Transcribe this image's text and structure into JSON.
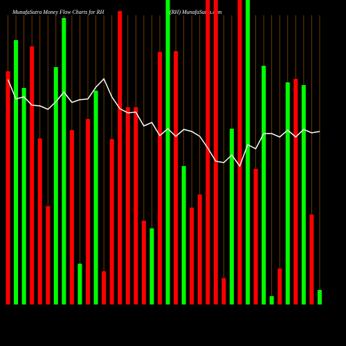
{
  "chart_data": {
    "type": "bar",
    "title": "MunafaSutra  Money Flow  Charts for RH",
    "subtitle": "(RH) MunafaSutra.com",
    "ylim": [
      0,
      440
    ],
    "series": [
      {
        "type": "bar",
        "values": [
          337,
          382,
          313,
          373,
          240,
          142,
          343,
          414,
          252,
          59,
          268,
          309,
          48,
          239,
          424,
          285,
          285,
          121,
          110,
          365,
          440,
          366,
          200,
          140,
          159,
          440,
          440,
          38,
          254,
          440,
          440,
          196,
          345,
          12,
          52,
          321,
          326,
          317,
          130,
          21
        ],
        "colors": [
          "#ff0000",
          "#00ff00",
          "#00ff00",
          "#ff0000",
          "#ff0000",
          "#ff0000",
          "#00ff00",
          "#00ff00",
          "#ff0000",
          "#00ff00",
          "#ff0000",
          "#00ff00",
          "#ff0000",
          "#ff0000",
          "#ff0000",
          "#ff0000",
          "#ff0000",
          "#ff0000",
          "#00ff00",
          "#ff0000",
          "#00ff00",
          "#ff0000",
          "#00ff00",
          "#ff0000",
          "#ff0000",
          "#ff0000",
          "#ff0000",
          "#ff0000",
          "#00ff00",
          "#ff0000",
          "#00ff00",
          "#ff0000",
          "#00ff00",
          "#00ff00",
          "#ff0000",
          "#00ff00",
          "#ff0000",
          "#00ff00",
          "#ff0000",
          "#00ff00"
        ]
      },
      {
        "type": "line",
        "color": "#ffffff",
        "values": [
          325,
          297,
          300,
          288,
          287,
          282,
          293,
          307,
          292,
          296,
          297,
          314,
          326,
          300,
          283,
          277,
          278,
          258,
          263,
          244,
          254,
          243,
          253,
          250,
          243,
          226,
          207,
          205,
          216,
          200,
          231,
          225,
          247,
          247,
          242,
          252,
          242,
          253,
          248,
          250
        ]
      }
    ]
  }
}
